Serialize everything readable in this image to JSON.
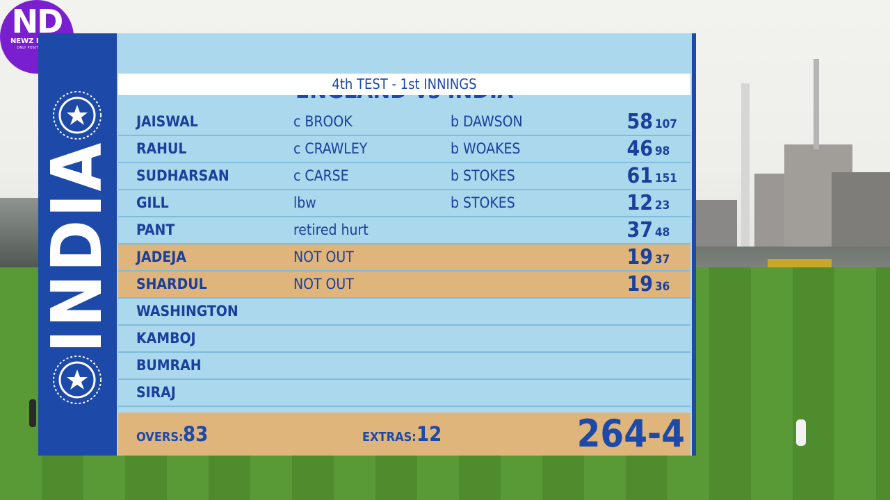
{
  "logo": {
    "mark": "ND",
    "name": "NEWZ DADDY",
    "tagline": "ONLY POSITIVE NEWS"
  },
  "team_banner": "INDIA",
  "title": "ENGLAND vs INDIA",
  "subtitle": "4th TEST - 1st INNINGS",
  "batters": [
    {
      "name": "JAISWAL",
      "how_out": "c  BROOK",
      "bowler": "b  DAWSON",
      "runs": "58",
      "balls": "107",
      "not_out": false
    },
    {
      "name": "RAHUL",
      "how_out": "c  CRAWLEY",
      "bowler": "b  WOAKES",
      "runs": "46",
      "balls": "98",
      "not_out": false
    },
    {
      "name": "SUDHARSAN",
      "how_out": "c  CARSE",
      "bowler": "b  STOKES",
      "runs": "61",
      "balls": "151",
      "not_out": false
    },
    {
      "name": "GILL",
      "how_out": "lbw",
      "bowler": "b  STOKES",
      "runs": "12",
      "balls": "23",
      "not_out": false
    },
    {
      "name": "PANT",
      "how_out": "retired hurt",
      "bowler": "",
      "runs": "37",
      "balls": "48",
      "not_out": false
    },
    {
      "name": "JADEJA",
      "how_out": "NOT OUT",
      "bowler": "",
      "runs": "19",
      "balls": "37",
      "not_out": true
    },
    {
      "name": "SHARDUL",
      "how_out": "NOT OUT",
      "bowler": "",
      "runs": "19",
      "balls": "36",
      "not_out": true
    },
    {
      "name": "WASHINGTON",
      "how_out": "",
      "bowler": "",
      "runs": "",
      "balls": "",
      "not_out": false
    },
    {
      "name": "KAMBOJ",
      "how_out": "",
      "bowler": "",
      "runs": "",
      "balls": "",
      "not_out": false
    },
    {
      "name": "BUMRAH",
      "how_out": "",
      "bowler": "",
      "runs": "",
      "balls": "",
      "not_out": false
    },
    {
      "name": "SIRAJ",
      "how_out": "",
      "bowler": "",
      "runs": "",
      "balls": "",
      "not_out": false
    }
  ],
  "footer": {
    "overs_label": "OVERS:",
    "overs": "83",
    "extras_label": "EXTRAS:",
    "extras": "12",
    "total": "264-4"
  },
  "colors": {
    "team_blue": "#1d49a8",
    "panel_light_blue": "#abd8ec",
    "not_out_highlight": "#e0b57b",
    "logo_purple": "#7a1fd0"
  }
}
